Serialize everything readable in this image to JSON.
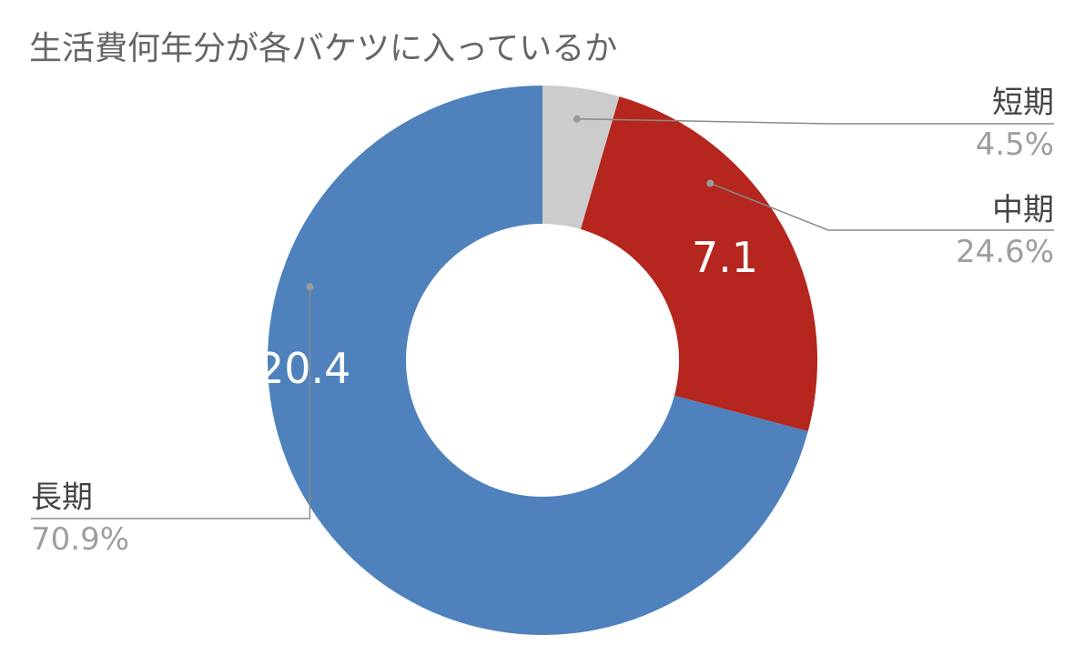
{
  "chart_data": {
    "type": "pie",
    "title": "生活費何年分が各バケツに入っているか",
    "donut": true,
    "slices": [
      {
        "name": "短期",
        "value": 1.3,
        "percent_label": "4.5%",
        "value_label": "",
        "color": "#cccccc"
      },
      {
        "name": "中期",
        "value": 7.1,
        "percent_label": "24.6%",
        "value_label": "7.1",
        "color": "#b5261e"
      },
      {
        "name": "長期",
        "value": 20.4,
        "percent_label": "70.9%",
        "value_label": "20.4",
        "color": "#4f81bd"
      }
    ]
  }
}
